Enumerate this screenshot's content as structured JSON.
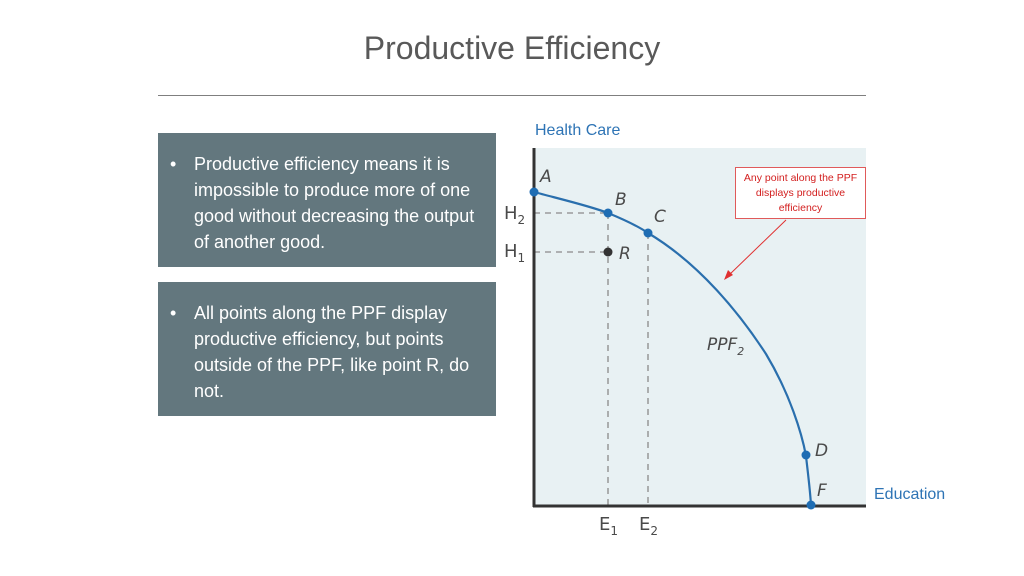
{
  "slide": {
    "title": "Productive Efficiency",
    "bullets": [
      "Productive efficiency means it is impossible to produce more of one good without decreasing the output of another good.",
      "All points along the PPF display productive efficiency, but points outside of the PPF, like point R, do not."
    ],
    "annotation": "Any point along the PPF displays productive efficiency"
  },
  "diagram": {
    "y_axis_label": "Health Care",
    "x_axis_label": "Education",
    "curve_label": "PPF",
    "curve_label_sub": "2",
    "points": [
      "A",
      "B",
      "C",
      "D",
      "F",
      "R"
    ],
    "y_ticks": [
      {
        "main": "H",
        "sub": "2"
      },
      {
        "main": "H",
        "sub": "1"
      }
    ],
    "x_ticks": [
      {
        "main": "E",
        "sub": "1"
      },
      {
        "main": "E",
        "sub": "2"
      }
    ],
    "colors": {
      "curve": "#2a6fad",
      "point": "#1f6db3",
      "inefficient_point": "#333333",
      "plot_background": "#e8f1f3",
      "axis": "#333333",
      "annotation_arrow": "#e03030"
    }
  }
}
